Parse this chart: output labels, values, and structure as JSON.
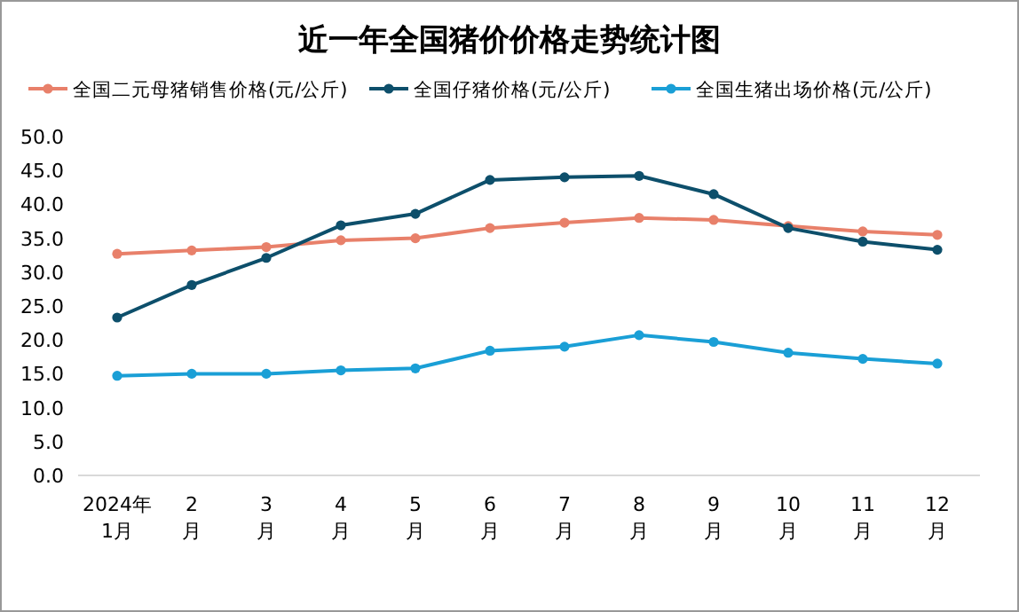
{
  "chart_data": {
    "type": "line",
    "title": "近一年全国猪价价格走势统计图",
    "categories": [
      "2024年\n1月",
      "2\n月",
      "3\n月",
      "4\n月",
      "5\n月",
      "6\n月",
      "7\n月",
      "8\n月",
      "9\n月",
      "10\n月",
      "11\n月",
      "12\n月"
    ],
    "series": [
      {
        "name": "全国二元母猪销售价格(元/公斤)",
        "color": "#e8806a",
        "values": [
          32.7,
          33.2,
          33.7,
          34.7,
          35.0,
          36.5,
          37.3,
          38.0,
          37.7,
          36.8,
          36.0,
          35.5
        ]
      },
      {
        "name": "全国仔猪价格(元/公斤)",
        "color": "#0d4f6b",
        "values": [
          23.3,
          28.1,
          32.1,
          36.9,
          38.6,
          43.6,
          44.0,
          44.2,
          41.5,
          36.5,
          34.5,
          33.3
        ]
      },
      {
        "name": "全国生猪出场价格(元/公斤)",
        "color": "#1a9fd6",
        "values": [
          14.7,
          15.0,
          15.0,
          15.5,
          15.8,
          18.4,
          19.0,
          20.7,
          19.7,
          18.1,
          17.2,
          16.5
        ]
      }
    ],
    "ylim": [
      0,
      50
    ],
    "yticks": [
      {
        "value": 0,
        "label": "0.0"
      },
      {
        "value": 5,
        "label": "5.0"
      },
      {
        "value": 10,
        "label": "10.0"
      },
      {
        "value": 15,
        "label": "15.0"
      },
      {
        "value": 20,
        "label": "20.0"
      },
      {
        "value": 25,
        "label": "25.0"
      },
      {
        "value": 30,
        "label": "30.0"
      },
      {
        "value": 35,
        "label": "35.0"
      },
      {
        "value": 40,
        "label": "40.0"
      },
      {
        "value": 45,
        "label": "45.0"
      },
      {
        "value": 50,
        "label": "50.0"
      }
    ],
    "legend": "top",
    "marker": "circle",
    "line_style": "solid"
  }
}
